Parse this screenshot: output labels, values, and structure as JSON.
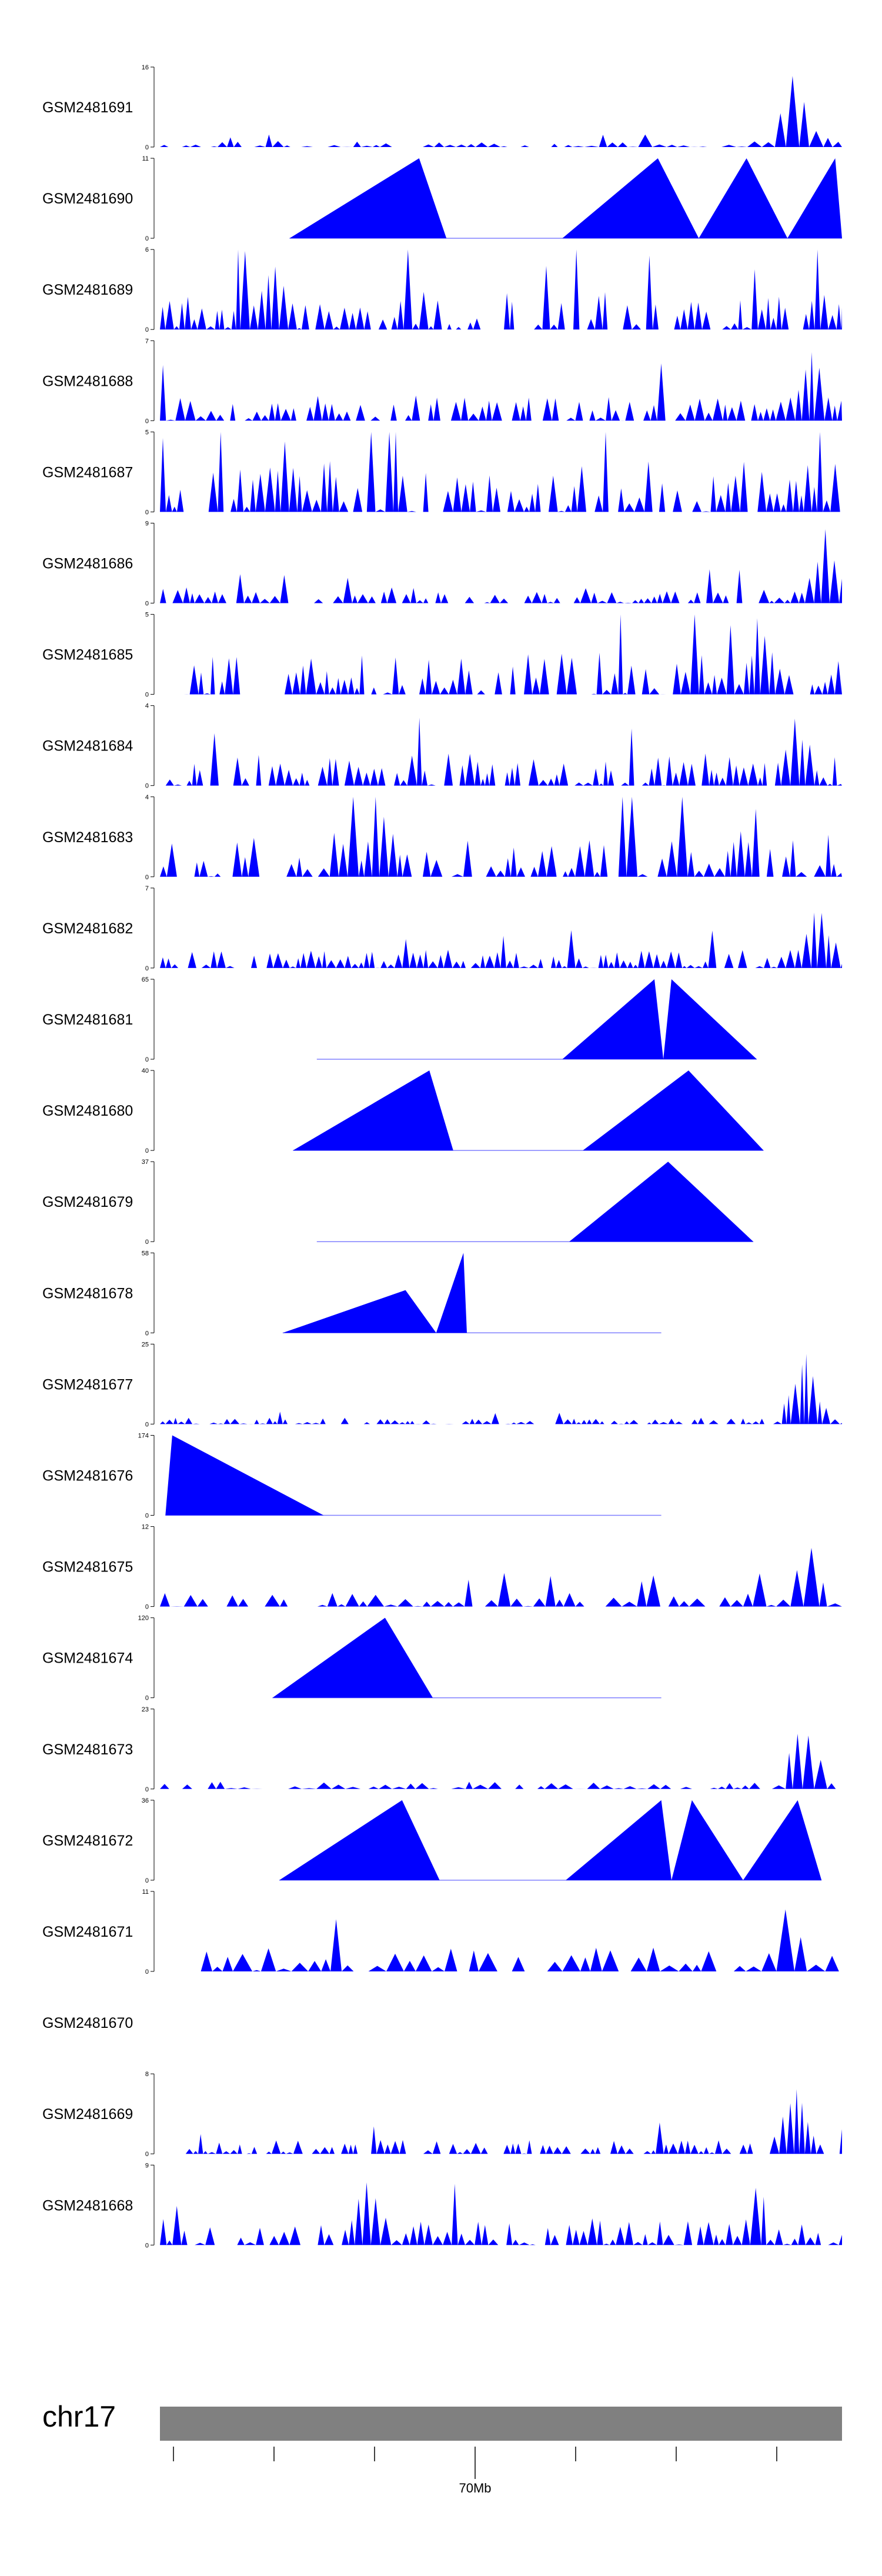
{
  "chart_data": {
    "type": "area",
    "title": "",
    "fill_color": "#0000ff",
    "baseline_color": "#8080ff",
    "chromosome": {
      "label": "chr17",
      "bar_color": "#808080",
      "ticks": [
        {
          "label": ""
        },
        {
          "label": ""
        },
        {
          "label": ""
        },
        {
          "label": "70Mb"
        },
        {
          "label": ""
        },
        {
          "label": ""
        },
        {
          "label": ""
        }
      ]
    },
    "tracks": [
      {
        "name": "GSM2481691",
        "ymax": 16,
        "ymin": 0,
        "mode": "dense",
        "seed": 11,
        "bg": 1.2,
        "peak": 16,
        "hot": 0.92,
        "bars": 64
      },
      {
        "name": "GSM2481690",
        "ymax": 11,
        "ymin": 0,
        "mode": "sparse",
        "points": [
          [
            0.19,
            0
          ],
          [
            0.38,
            11
          ],
          [
            0.42,
            0
          ],
          [
            0.59,
            0
          ],
          [
            0.73,
            11
          ],
          [
            0.79,
            0
          ],
          [
            0.86,
            11
          ],
          [
            0.92,
            0
          ],
          [
            0.99,
            11
          ],
          [
            1.0,
            0
          ]
        ],
        "baseline": [
          0.19,
          1.0
        ]
      },
      {
        "name": "GSM2481689",
        "ymax": 6,
        "ymin": 0,
        "mode": "dense",
        "seed": 23,
        "bg": 3.0,
        "peak": 6,
        "hot": 0.16,
        "bars": 100
      },
      {
        "name": "GSM2481688",
        "ymax": 7,
        "ymin": 0,
        "mode": "dense",
        "seed": 31,
        "bg": 2.2,
        "peak": 7,
        "hot": 0.95,
        "bars": 90
      },
      {
        "name": "GSM2481687",
        "ymax": 5,
        "ymin": 0,
        "mode": "dense",
        "seed": 37,
        "bg": 3.2,
        "peak": 5,
        "hot": 0.18,
        "bars": 92
      },
      {
        "name": "GSM2481686",
        "ymax": 9,
        "ymin": 0,
        "mode": "dense",
        "seed": 41,
        "bg": 1.8,
        "peak": 9,
        "hot": 0.97,
        "bars": 88
      },
      {
        "name": "GSM2481685",
        "ymax": 5,
        "ymin": 0,
        "mode": "dense",
        "seed": 47,
        "bg": 2.6,
        "peak": 5,
        "hot": 0.88,
        "bars": 90,
        "start": 0.035
      },
      {
        "name": "GSM2481684",
        "ymax": 4,
        "ymin": 0,
        "mode": "dense",
        "seed": 53,
        "bg": 1.6,
        "peak": 4,
        "hot": 0.93,
        "bars": 96
      },
      {
        "name": "GSM2481683",
        "ymax": 4,
        "ymin": 0,
        "mode": "dense",
        "seed": 59,
        "bg": 2.4,
        "peak": 4,
        "hot": 0.32,
        "bars": 80
      },
      {
        "name": "GSM2481682",
        "ymax": 7,
        "ymin": 0,
        "mode": "dense",
        "seed": 61,
        "bg": 1.6,
        "peak": 7,
        "hot": 0.96,
        "bars": 96
      },
      {
        "name": "GSM2481681",
        "ymax": 65,
        "ymin": 0,
        "mode": "sparse",
        "points": [
          [
            0.59,
            0
          ],
          [
            0.725,
            65
          ],
          [
            0.738,
            0
          ],
          [
            0.75,
            65
          ],
          [
            0.875,
            0
          ]
        ],
        "baseline": [
          0.23,
          0.875
        ]
      },
      {
        "name": "GSM2481680",
        "ymax": 40,
        "ymin": 0,
        "mode": "sparse",
        "points": [
          [
            0.195,
            0
          ],
          [
            0.395,
            40
          ],
          [
            0.43,
            0
          ],
          [
            0.62,
            0
          ],
          [
            0.775,
            40
          ],
          [
            0.885,
            0
          ]
        ],
        "baseline": [
          0.195,
          0.885
        ]
      },
      {
        "name": "GSM2481679",
        "ymax": 37,
        "ymin": 0,
        "mode": "sparse",
        "points": [
          [
            0.6,
            0
          ],
          [
            0.745,
            37
          ],
          [
            0.87,
            0
          ]
        ],
        "baseline": [
          0.23,
          0.87
        ]
      },
      {
        "name": "GSM2481678",
        "ymax": 58,
        "ymin": 0,
        "mode": "sparse",
        "points": [
          [
            0.18,
            0
          ],
          [
            0.36,
            31
          ],
          [
            0.405,
            0
          ],
          [
            0.445,
            58
          ],
          [
            0.45,
            0
          ]
        ],
        "baseline": [
          0.18,
          0.735
        ]
      },
      {
        "name": "GSM2481677",
        "ymax": 25,
        "ymin": 0,
        "mode": "dense",
        "seed": 71,
        "bg": 2.0,
        "peak": 25,
        "hot": 0.94,
        "bars": 100
      },
      {
        "name": "GSM2481676",
        "ymax": 174,
        "ymin": 0,
        "mode": "sparse",
        "points": [
          [
            0.008,
            0
          ],
          [
            0.018,
            174
          ],
          [
            0.24,
            0
          ]
        ],
        "baseline": [
          0.008,
          0.735
        ]
      },
      {
        "name": "GSM2481675",
        "ymax": 12,
        "ymin": 0,
        "mode": "dense",
        "seed": 79,
        "bg": 2.2,
        "peak": 12,
        "hot": 0.94,
        "bars": 56
      },
      {
        "name": "GSM2481674",
        "ymax": 120,
        "ymin": 0,
        "mode": "sparse",
        "points": [
          [
            0.165,
            0
          ],
          [
            0.33,
            120
          ],
          [
            0.4,
            0
          ]
        ],
        "baseline": [
          0.165,
          0.735
        ]
      },
      {
        "name": "GSM2481673",
        "ymax": 23,
        "ymin": 0,
        "mode": "dense",
        "seed": 83,
        "bg": 2.2,
        "peak": 23,
        "hot": 0.935,
        "bars": 60
      },
      {
        "name": "GSM2481672",
        "ymax": 36,
        "ymin": 0,
        "mode": "sparse",
        "points": [
          [
            0.175,
            0
          ],
          [
            0.355,
            36
          ],
          [
            0.41,
            0
          ],
          [
            0.595,
            0
          ],
          [
            0.735,
            36
          ],
          [
            0.75,
            0
          ],
          [
            0.78,
            36
          ],
          [
            0.855,
            0
          ],
          [
            0.935,
            36
          ],
          [
            0.97,
            0
          ]
        ],
        "baseline": [
          0.175,
          0.97
        ]
      },
      {
        "name": "GSM2481671",
        "ymax": 11,
        "ymin": 0,
        "mode": "dense",
        "seed": 89,
        "bg": 3.6,
        "peak": 11,
        "hot": 0.91,
        "bars": 46,
        "start": 0.06
      },
      {
        "name": "GSM2481670",
        "ymax": null,
        "ymin": null,
        "mode": "empty"
      },
      {
        "name": "GSM2481669",
        "ymax": 8,
        "ymin": 0,
        "mode": "dense",
        "seed": 97,
        "bg": 1.4,
        "peak": 8,
        "hot": 0.925,
        "bars": 96
      },
      {
        "name": "GSM2481668",
        "ymax": 9,
        "ymin": 0,
        "mode": "dense",
        "seed": 101,
        "bg": 3.0,
        "peak": 9,
        "hot": 0.3,
        "bars": 84
      }
    ]
  }
}
